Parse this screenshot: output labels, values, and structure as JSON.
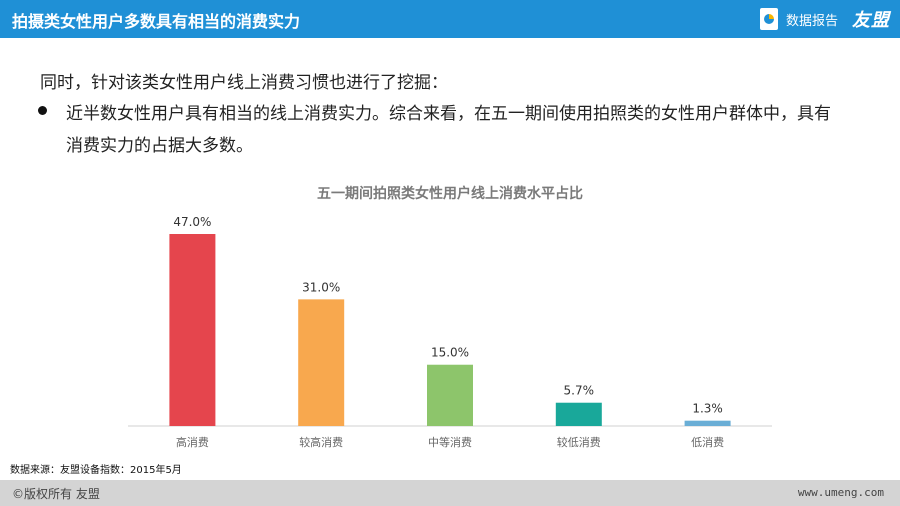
{
  "header": {
    "title": "拍摄类女性用户多数具有相当的消费实力",
    "report_label": "数据报告",
    "brand": "友盟",
    "report_icon": "report-chart-icon",
    "bg_color": "#1f90d6"
  },
  "content": {
    "intro": "同时，针对该类女性用户线上消费习惯也进行了挖掘：",
    "bullet_line1": "近半数女性用户具有相当的线上消费实力。综合来看，在五一期间使用拍照类的女性用户群体中，具有",
    "bullet_line2": "消费实力的占据大多数。"
  },
  "chart_data": {
    "type": "bar",
    "title": "五一期间拍照类女性用户线上消费水平占比",
    "categories": [
      "高消费",
      "较高消费",
      "中等消费",
      "较低消费",
      "低消费"
    ],
    "values": [
      47.0,
      31.0,
      15.0,
      5.7,
      1.3
    ],
    "value_labels": [
      "47.0%",
      "31.0%",
      "15.0%",
      "5.7%",
      "1.3%"
    ],
    "colors": [
      "#e5454d",
      "#f8a84e",
      "#8dc56b",
      "#19a89a",
      "#6aaed6"
    ],
    "ylim": [
      0,
      50
    ],
    "xlabel": "",
    "ylabel": "",
    "grid": false
  },
  "footnote": "数据来源：友盟设备指数：2015年5月",
  "footer": {
    "copyright": "©版权所有  友盟",
    "url": "www.umeng.com"
  }
}
